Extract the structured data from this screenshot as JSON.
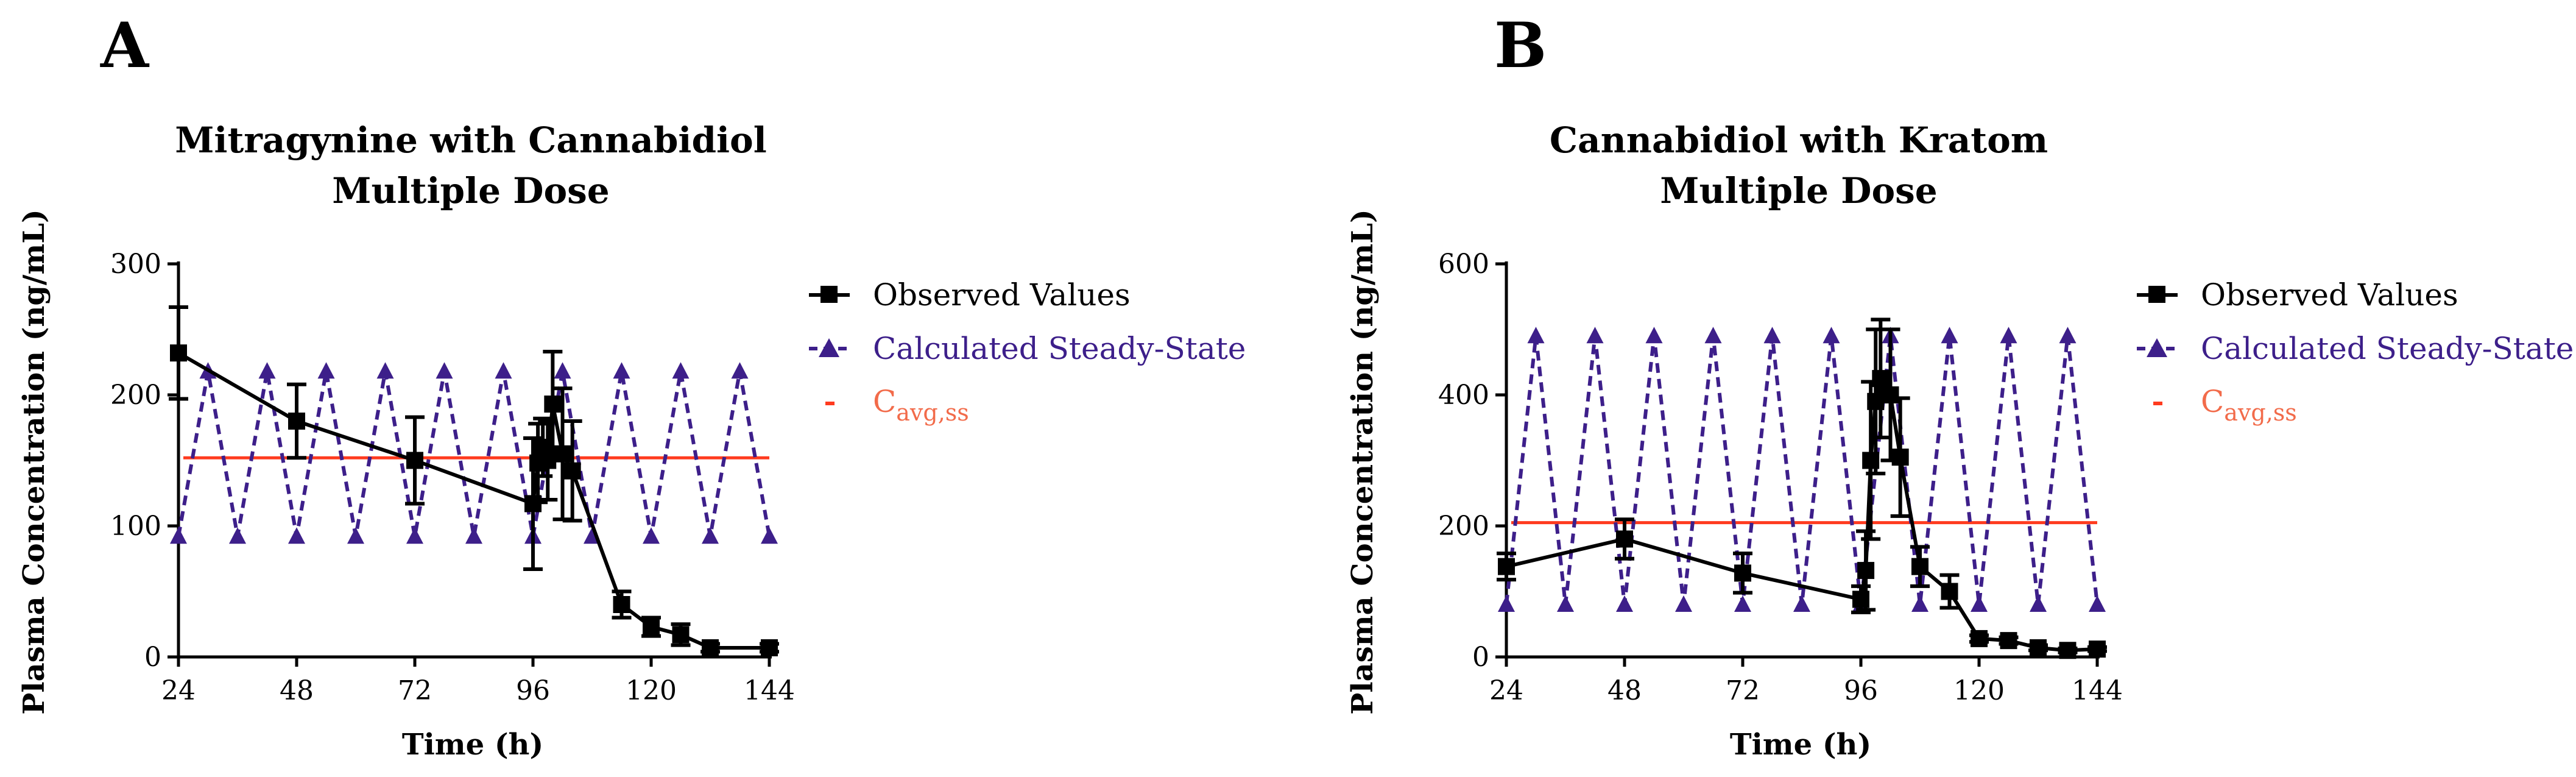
{
  "colors": {
    "observed": "#000000",
    "calculated": "#3d1f8a",
    "cavg": "#ff3b1f",
    "legend_cavg_text": "#f26b4a"
  },
  "chart_data": [
    {
      "panel_letter": "A",
      "type": "line",
      "title_line1": "Mitragynine with Cannabidiol",
      "title_line2": "Multiple Dose",
      "xlabel": "Time (h)",
      "ylabel": "Plasma Concentration (ng/mL)",
      "xlim": [
        24,
        144
      ],
      "ylim": [
        0,
        300
      ],
      "xticks": [
        "24",
        "48",
        "72",
        "96",
        "120",
        "144"
      ],
      "yticks": [
        "0",
        "100",
        "200",
        "300"
      ],
      "legend": {
        "observed": "Observed Values",
        "calculated": "Calculated Steady-State",
        "cavg_base": "C",
        "cavg_sub": "avg,ss"
      },
      "observed": {
        "x": [
          24,
          48,
          72,
          96,
          97,
          98,
          99,
          100,
          102,
          104,
          114,
          120,
          126,
          132,
          144
        ],
        "y": [
          232,
          180,
          150,
          117,
          148,
          160,
          150,
          193,
          155,
          142,
          40,
          23,
          17,
          7,
          7
        ],
        "err": [
          35,
          28,
          33,
          50,
          30,
          22,
          30,
          40,
          50,
          38,
          10,
          7,
          8,
          3,
          3
        ]
      },
      "calculated": {
        "x": [
          24,
          30,
          36,
          42,
          48,
          54,
          60,
          66,
          72,
          78,
          84,
          90,
          96,
          102,
          108,
          114,
          120,
          126,
          132,
          138,
          144
        ],
        "y": [
          92,
          218,
          92,
          218,
          92,
          218,
          92,
          218,
          92,
          218,
          92,
          218,
          92,
          218,
          92,
          218,
          92,
          218,
          92,
          218,
          92
        ]
      },
      "cavg": 152
    },
    {
      "panel_letter": "B",
      "type": "line",
      "title_line1": "Cannabidiol with Kratom",
      "title_line2": "Multiple Dose",
      "xlabel": "Time (h)",
      "ylabel": "Plasma Concentration (ng/mL)",
      "xlim": [
        24,
        144
      ],
      "ylim": [
        0,
        600
      ],
      "xticks": [
        "24",
        "48",
        "72",
        "96",
        "120",
        "144"
      ],
      "yticks": [
        "0",
        "200",
        "400",
        "600"
      ],
      "legend": {
        "observed": "Observed Values",
        "calculated": "Calculated Steady-State",
        "cavg_base": "C",
        "cavg_sub": "avg,ss"
      },
      "observed": {
        "x": [
          24,
          48,
          72,
          96,
          97,
          98,
          99,
          100,
          102,
          104,
          108,
          114,
          120,
          126,
          132,
          138,
          144
        ],
        "y": [
          138,
          180,
          128,
          88,
          132,
          300,
          390,
          425,
          400,
          305,
          138,
          100,
          28,
          25,
          14,
          10,
          12
        ],
        "err": [
          20,
          30,
          30,
          20,
          60,
          120,
          110,
          90,
          100,
          90,
          30,
          25,
          5,
          5,
          4,
          3,
          3
        ]
      },
      "calculated": {
        "x": [
          24,
          30,
          36,
          42,
          48,
          54,
          60,
          66,
          72,
          78,
          84,
          90,
          96,
          102,
          108,
          114,
          120,
          126,
          132,
          138,
          144
        ],
        "y": [
          80,
          490,
          80,
          490,
          80,
          490,
          80,
          490,
          80,
          490,
          80,
          490,
          80,
          490,
          80,
          490,
          80,
          490,
          80,
          490,
          80
        ]
      },
      "cavg": 205
    }
  ]
}
